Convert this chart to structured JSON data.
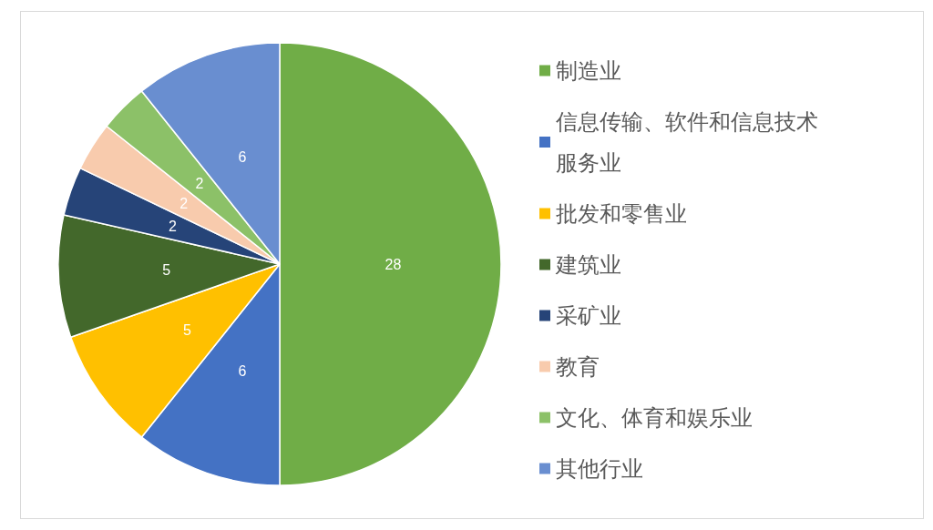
{
  "chart_data": {
    "type": "pie",
    "categories": [
      "制造业",
      "信息传输、软件和信息技术服务业",
      "批发和零售业",
      "建筑业",
      "采矿业",
      "教育",
      "文化、体育和娱乐业",
      "其他行业"
    ],
    "values": [
      28,
      6,
      5,
      5,
      2,
      2,
      2,
      6
    ],
    "colors": [
      "#70ad47",
      "#4472c4",
      "#ffc000",
      "#43682b",
      "#264478",
      "#f8cbad",
      "#8cc168",
      "#698ed0"
    ],
    "data_labels": true,
    "legend": "right"
  }
}
